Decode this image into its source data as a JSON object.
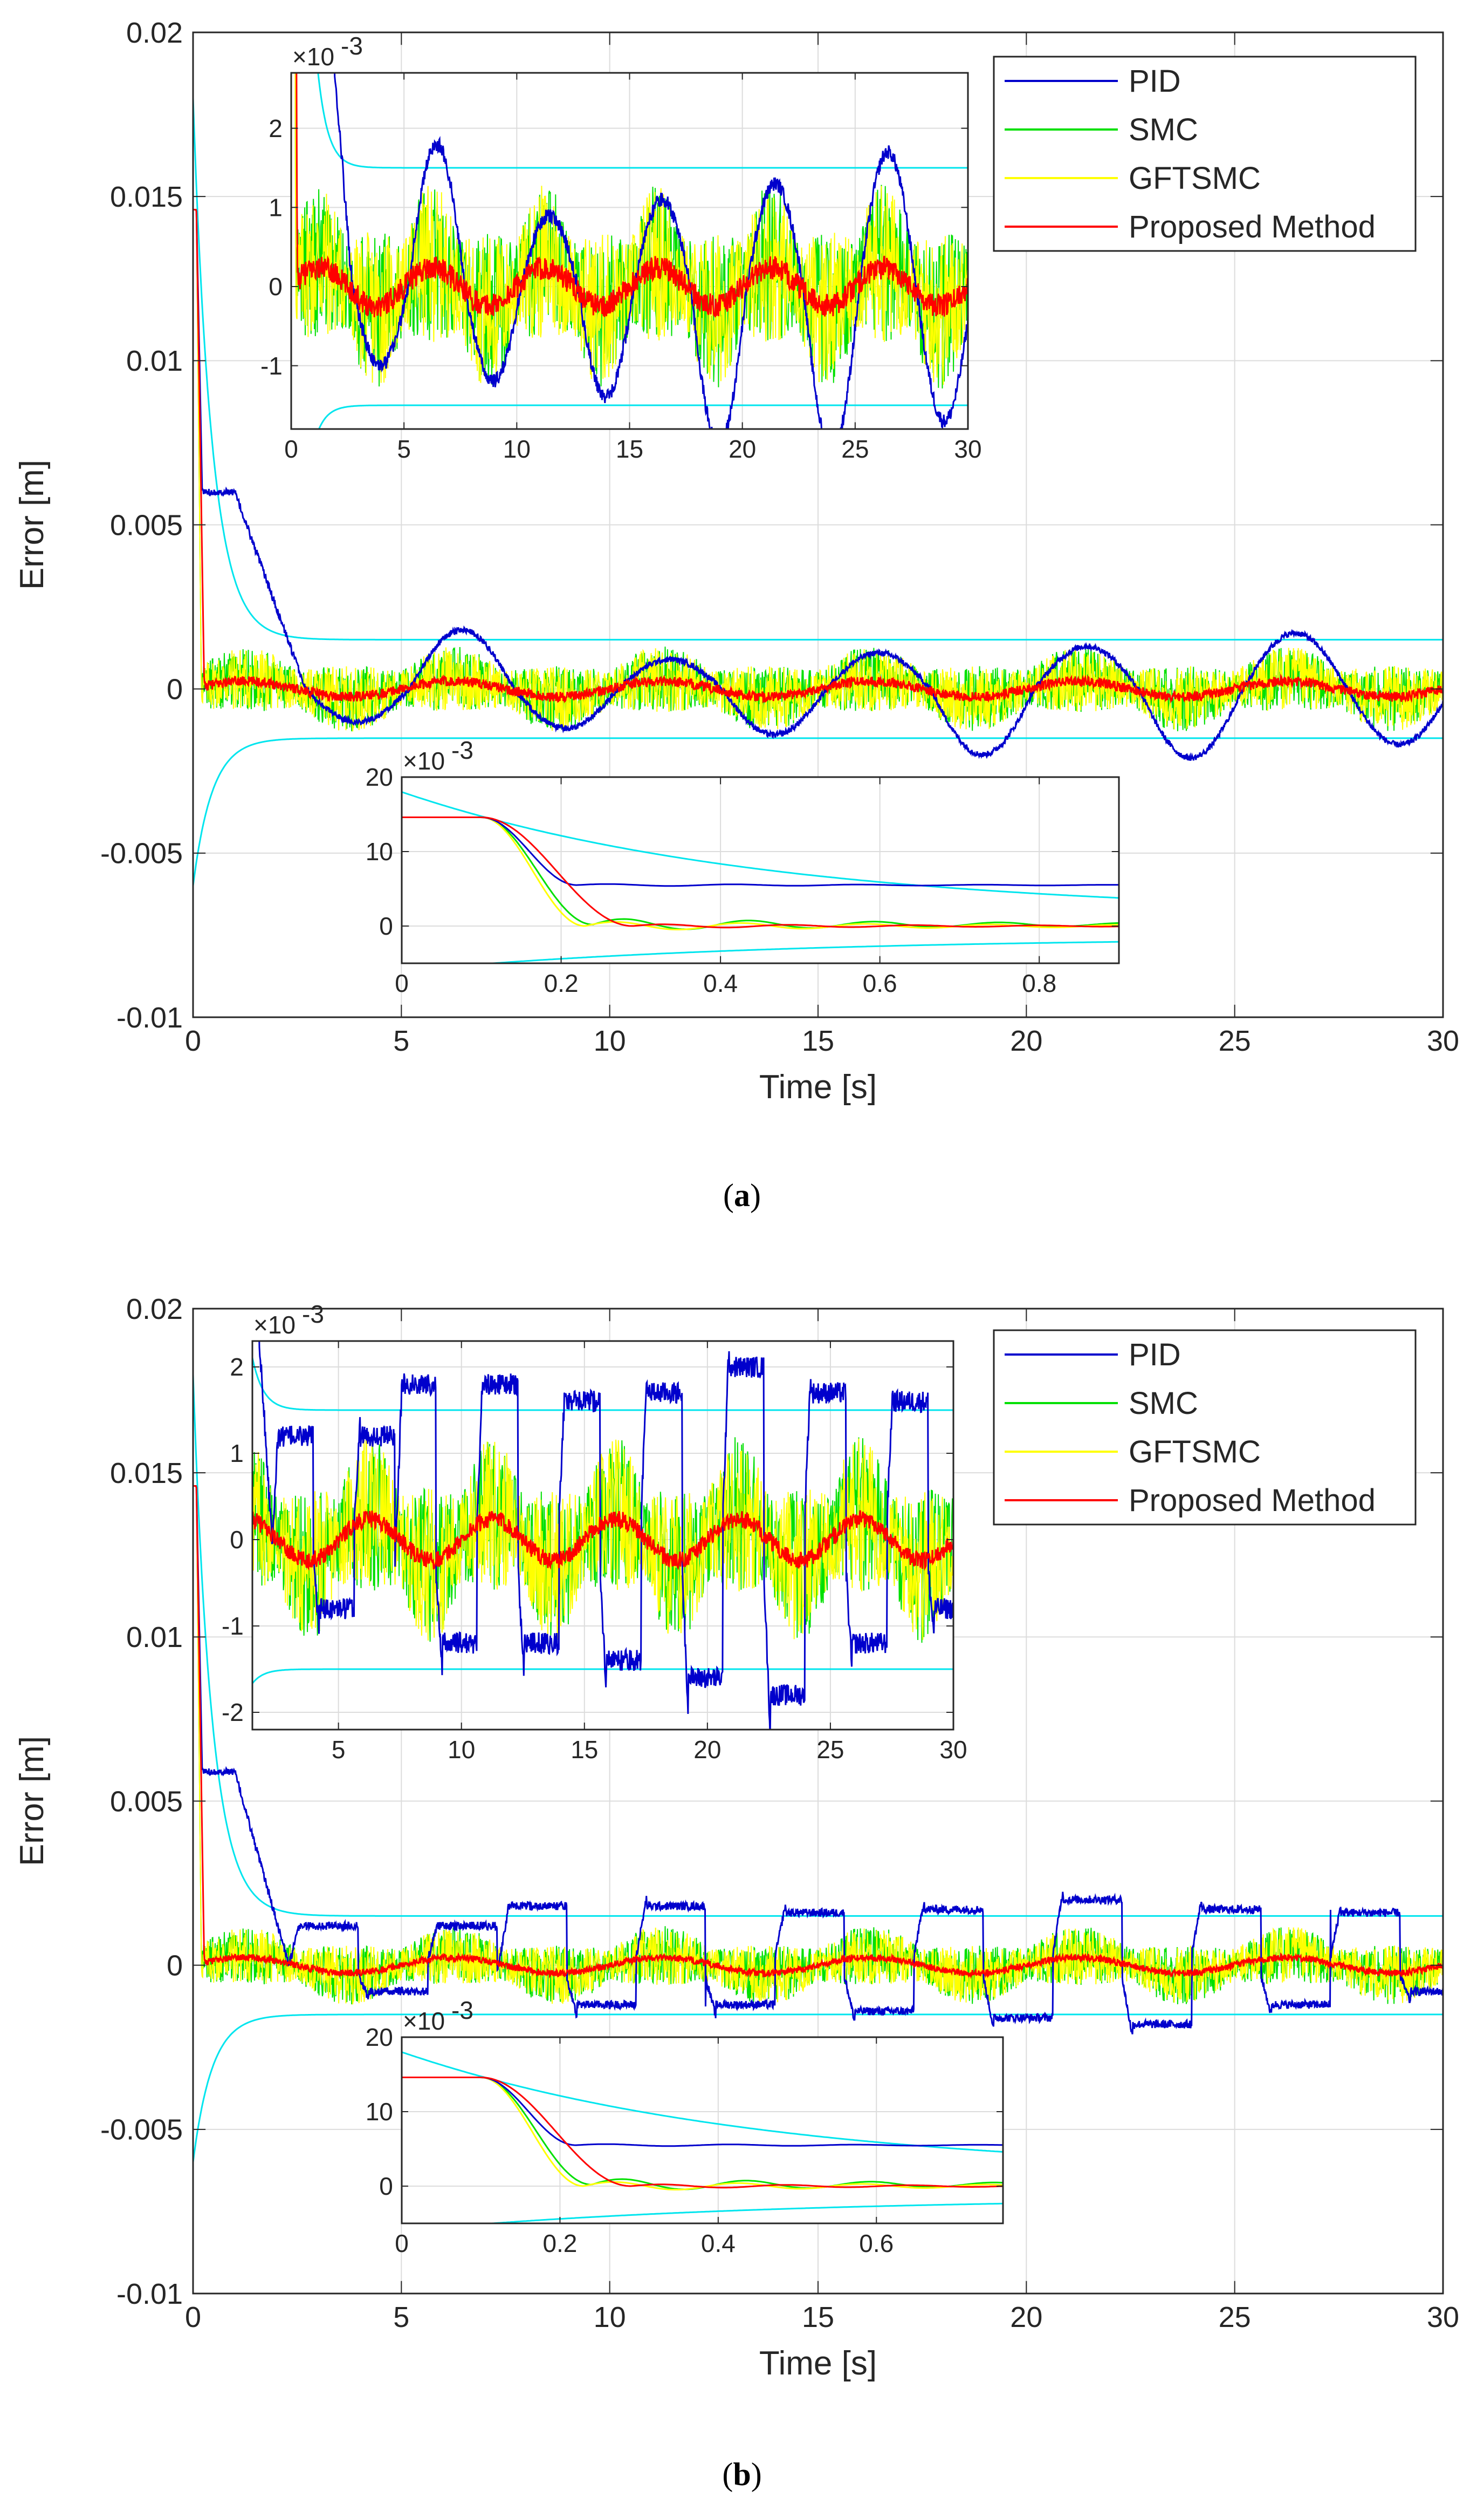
{
  "chart_data": [
    {
      "id": "a",
      "type": "line",
      "caption_open": "(",
      "caption_letter": "a",
      "caption_close": ")",
      "xlabel": "Time [s]",
      "ylabel": "Error [m]",
      "xlim": [
        0,
        30
      ],
      "ylim": [
        -0.01,
        0.02
      ],
      "xticks": [
        0,
        5,
        10,
        15,
        20,
        25,
        30
      ],
      "yticks": [
        -0.01,
        -0.005,
        0,
        0.005,
        0.01,
        0.015,
        0.02
      ],
      "xtick_labels": [
        "0",
        "5",
        "10",
        "15",
        "20",
        "25",
        "30"
      ],
      "ytick_labels": [
        "-0.01",
        "-0.005",
        "0",
        "0.005",
        "0.01",
        "0.015",
        "0.02"
      ],
      "grid": true,
      "legend_position": "top-right",
      "legend": [
        "PID",
        "SMC",
        "GFTSMC",
        "Proposed Method"
      ],
      "colors": {
        "PID": "#0000cc",
        "SMC": "#00e000",
        "GFTSMC": "#ffff00",
        "Proposed": "#ff0000",
        "Bound": "#00e5ee"
      },
      "bound": {
        "initial": 0.018,
        "final": 0.0015,
        "decay_rate": 2.2
      },
      "pid": {
        "peak": 0.006,
        "plateau_end": 1.0,
        "drop_end": 2.7,
        "oscillation_amplitudes": [
          0.001,
          0.0018,
          0.0012,
          0.0009,
          0.0014,
          0.0011,
          0.002,
          0.0013,
          0.0021,
          0.0017
        ],
        "oscillation_period": 5
      },
      "smc": {
        "band_amplitude": 0.001
      },
      "gftsmc": {
        "band_amplitude": 0.001
      },
      "proposed": {
        "amplitude": 0.0003
      },
      "inset_top": {
        "exponent_label": "×10",
        "exponent_power": "-3",
        "xlim": [
          0,
          30
        ],
        "ylim": [
          -1.8,
          2.7
        ],
        "xticks": [
          0,
          5,
          10,
          15,
          20,
          25,
          30
        ],
        "xtick_labels": [
          "0",
          "5",
          "10",
          "15",
          "20",
          "25",
          "30"
        ],
        "yticks": [
          -1,
          0,
          1,
          2
        ],
        "ytick_labels": [
          "-1",
          "0",
          "1",
          "2"
        ]
      },
      "inset_bottom": {
        "exponent_label": "×10",
        "exponent_power": "-3",
        "xlim": [
          0,
          0.9
        ],
        "ylim": [
          -5,
          20
        ],
        "xticks": [
          0,
          0.2,
          0.4,
          0.6,
          0.8
        ],
        "xtick_labels": [
          "0",
          "0.2",
          "0.4",
          "0.6",
          "0.8"
        ],
        "yticks": [
          0,
          10,
          20
        ],
        "ytick_labels": [
          "0",
          "10",
          "20"
        ],
        "pid_settle": 5.5
      }
    },
    {
      "id": "b",
      "type": "line",
      "caption_open": "(",
      "caption_letter": "b",
      "caption_close": ")",
      "xlabel": "Time [s]",
      "ylabel": "Error [m]",
      "xlim": [
        0,
        30
      ],
      "ylim": [
        -0.01,
        0.02
      ],
      "xticks": [
        0,
        5,
        10,
        15,
        20,
        25,
        30
      ],
      "yticks": [
        -0.01,
        -0.005,
        0,
        0.005,
        0.01,
        0.015,
        0.02
      ],
      "xtick_labels": [
        "0",
        "5",
        "10",
        "15",
        "20",
        "25",
        "30"
      ],
      "ytick_labels": [
        "-0.01",
        "-0.005",
        "0",
        "0.005",
        "0.01",
        "0.015",
        "0.02"
      ],
      "grid": true,
      "legend_position": "top-right",
      "legend": [
        "PID",
        "SMC",
        "GFTSMC",
        "Proposed Method"
      ],
      "colors": {
        "PID": "#0000cc",
        "SMC": "#00e000",
        "GFTSMC": "#ffff00",
        "Proposed": "#ff0000",
        "Bound": "#00e5ee"
      },
      "bound": {
        "initial": 0.018,
        "final": 0.0015,
        "decay_rate": 2.2
      },
      "pid": {
        "peak": 0.0059,
        "plateau_end": 1.0,
        "drop_end": 2.3,
        "square_levels": [
          0.0012,
          -0.0008,
          0.0012,
          0.0018,
          -0.0012,
          0.0018,
          -0.0012,
          0.0016,
          -0.0014,
          0.0017,
          -0.0016,
          0.002,
          -0.0018,
          0.0017,
          -0.0012,
          0.0016,
          -0.0008,
          0.0003
        ],
        "switch_period": 2
      },
      "smc": {
        "band_amplitude": 0.0009
      },
      "gftsmc": {
        "band_amplitude": 0.0009
      },
      "proposed": {
        "amplitude": 0.0002
      },
      "inset_top": {
        "exponent_label": "×10",
        "exponent_power": "-3",
        "xlim": [
          1.5,
          30
        ],
        "ylim": [
          -2.2,
          2.3
        ],
        "xticks": [
          5,
          10,
          15,
          20,
          25,
          30
        ],
        "xtick_labels": [
          "5",
          "10",
          "15",
          "20",
          "25",
          "30"
        ],
        "yticks": [
          -2,
          -1,
          0,
          1,
          2
        ],
        "ytick_labels": [
          "-2",
          "-1",
          "0",
          "1",
          "2"
        ]
      },
      "inset_bottom": {
        "exponent_label": "×10",
        "exponent_power": "-3",
        "xlim": [
          0,
          0.76
        ],
        "ylim": [
          -5,
          20
        ],
        "xticks": [
          0,
          0.2,
          0.4,
          0.6
        ],
        "xtick_labels": [
          "0",
          "0.2",
          "0.4",
          "0.6"
        ],
        "yticks": [
          0,
          10,
          20
        ],
        "ytick_labels": [
          "0",
          "10",
          "20"
        ],
        "pid_settle": 5.5
      }
    }
  ]
}
